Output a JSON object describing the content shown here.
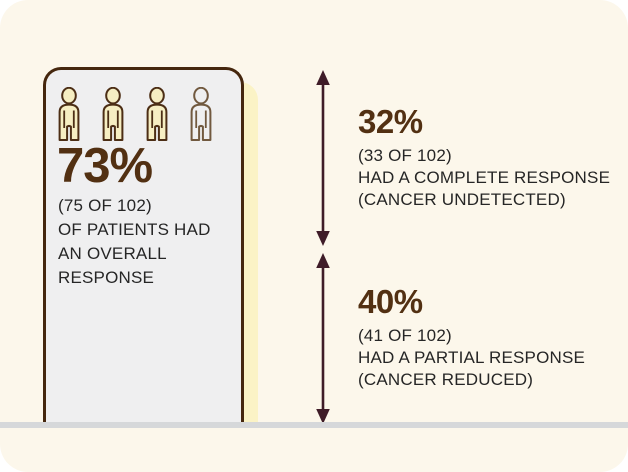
{
  "chart_data": {
    "type": "bar",
    "description": "Pictogram column infographic: overall response rate split into complete and partial response segments, marked by vertical span arrows.",
    "unit": "percent of 102 patients",
    "overall": {
      "percent_label": "73%",
      "value": 73,
      "n": 75,
      "total": 102,
      "detail": "(75 OF 102)",
      "desc_lines": [
        "OF PATIENTS HAD",
        "AN OVERALL",
        "RESPONSE"
      ]
    },
    "segments": [
      {
        "percent_label": "32%",
        "value": 32,
        "n": 33,
        "total": 102,
        "detail": "(33 OF 102)",
        "label": "HAD A COMPLETE RESPONSE",
        "note": "(CANCER UNDETECTED)"
      },
      {
        "percent_label": "40%",
        "value": 40,
        "n": 41,
        "total": 102,
        "detail": "(41 OF 102)",
        "label": "HAD A PARTIAL RESPONSE",
        "note": "(CANCER REDUCED)"
      }
    ],
    "pictogram": {
      "icons_total": 4,
      "icons_filled": 3
    }
  },
  "colors": {
    "panel_bg": "#fcf7eb",
    "shadow": "#fbf3c6",
    "card_fill": "#efeff0",
    "card_border": "#45270e",
    "accent_brown": "#523012",
    "arrow": "#3f1c28",
    "text_dark": "#262626",
    "baseline": "#d6d8da",
    "icon_fill": "#f6eec2",
    "icon_stroke": "#4c2e15",
    "icon_stroke_light": "#71593f"
  }
}
